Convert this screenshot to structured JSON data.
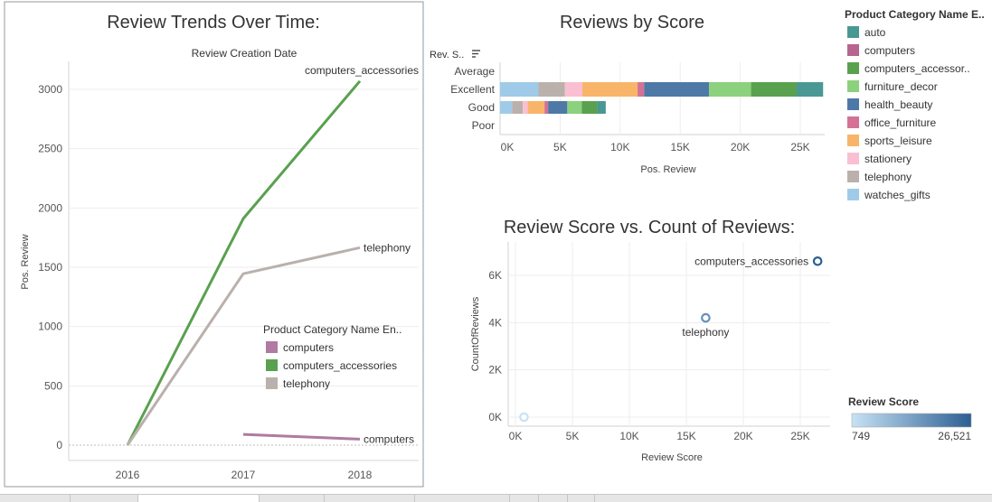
{
  "chart_data": [
    {
      "type": "line",
      "title": "Review Trends Over Time:",
      "column_header": "Review Creation Date",
      "xlabel": "",
      "ylabel": "Pos. Review",
      "categories": [
        "2016",
        "2017",
        "2018"
      ],
      "ylim": [
        0,
        3200
      ],
      "yticks": [
        0,
        500,
        1000,
        1500,
        2000,
        2500,
        3000
      ],
      "grid": true,
      "legend": {
        "title": "Product Category Name En..",
        "position": "bottom-right",
        "items": [
          {
            "label": "computers",
            "color": "#b07aa1"
          },
          {
            "label": "computers_accessories",
            "color": "#59a14f"
          },
          {
            "label": "telephony",
            "color": "#bab0ac"
          }
        ]
      },
      "series": [
        {
          "name": "computers_accessories",
          "color": "#59a14f",
          "values": [
            0,
            1910,
            3070
          ]
        },
        {
          "name": "telephony",
          "color": "#bab0ac",
          "values": [
            0,
            1445,
            1665
          ]
        },
        {
          "name": "computers",
          "color": "#b07aa1",
          "values": [
            null,
            90,
            50
          ]
        }
      ]
    },
    {
      "type": "bar",
      "orientation": "horizontal",
      "stacked": true,
      "title": "Reviews by Score",
      "row_header": "Rev. S..",
      "xlabel": "Pos. Review",
      "categories": [
        "Average",
        "Excellent",
        "Good",
        "Poor"
      ],
      "xlim": [
        0,
        27000
      ],
      "xticks": [
        0,
        5000,
        10000,
        15000,
        20000,
        25000
      ],
      "xtick_labels": [
        "0K",
        "5K",
        "10K",
        "15K",
        "20K",
        "25K"
      ],
      "grid": true,
      "stack_order": [
        "watches_gifts",
        "telephony",
        "stationery",
        "sports_leisure",
        "office_furniture",
        "health_beauty",
        "furniture_decor",
        "computers_accessories",
        "computers",
        "auto"
      ],
      "series": [
        {
          "name": "watches_gifts",
          "values": [
            0,
            3200,
            1000,
            0
          ]
        },
        {
          "name": "telephony",
          "values": [
            0,
            2200,
            900,
            0
          ]
        },
        {
          "name": "stationery",
          "values": [
            0,
            1450,
            400,
            0
          ]
        },
        {
          "name": "sports_leisure",
          "values": [
            0,
            4600,
            1400,
            0
          ]
        },
        {
          "name": "office_furniture",
          "values": [
            0,
            550,
            300,
            0
          ]
        },
        {
          "name": "health_beauty",
          "values": [
            0,
            5400,
            1600,
            0
          ]
        },
        {
          "name": "furniture_decor",
          "values": [
            0,
            3500,
            1200,
            0
          ]
        },
        {
          "name": "computers_accessories",
          "values": [
            0,
            3800,
            1300,
            0
          ]
        },
        {
          "name": "computers",
          "values": [
            0,
            0,
            0,
            0
          ]
        },
        {
          "name": "auto",
          "values": [
            0,
            2200,
            700,
            0
          ]
        }
      ]
    },
    {
      "type": "scatter",
      "title": "Review Score vs. Count of Reviews:",
      "xlabel": "Review Score",
      "ylabel": "CountOfReviews",
      "xlim": [
        -1000,
        27600
      ],
      "ylim": [
        -400,
        7200
      ],
      "xticks": [
        0,
        5000,
        10000,
        15000,
        20000,
        25000
      ],
      "xtick_labels": [
        "0K",
        "5K",
        "10K",
        "15K",
        "20K",
        "25K"
      ],
      "yticks": [
        0,
        2000,
        4000,
        6000
      ],
      "ytick_labels": [
        "0K",
        "2K",
        "4K",
        "6K"
      ],
      "grid": true,
      "points": [
        {
          "label": "computers_accessories",
          "x": 26521,
          "y": 6600,
          "label_side": "left"
        },
        {
          "label": "telephony",
          "x": 16700,
          "y": 4200,
          "label_side": "below"
        },
        {
          "label": "",
          "x": 749,
          "y": 0,
          "label_side": "none"
        }
      ],
      "color_scale": {
        "title": "Review Score",
        "min": 749,
        "max": 26521,
        "min_label": "749",
        "max_label": "26,521",
        "colors": [
          "#c6e2f5",
          "#2d5f93"
        ]
      }
    }
  ],
  "category_legend": {
    "title": "Product Category Name E..",
    "items": [
      {
        "label": "auto",
        "color": "#499894"
      },
      {
        "label": "computers",
        "color": "#b6668f"
      },
      {
        "label": "computers_accessor..",
        "color": "#59a14f"
      },
      {
        "label": "furniture_decor",
        "color": "#8cd17d"
      },
      {
        "label": "health_beauty",
        "color": "#4e79a7"
      },
      {
        "label": "office_furniture",
        "color": "#d37295"
      },
      {
        "label": "sports_leisure",
        "color": "#f8b56a"
      },
      {
        "label": "stationery",
        "color": "#fabfd2"
      },
      {
        "label": "telephony",
        "color": "#bab0ac"
      },
      {
        "label": "watches_gifts",
        "color": "#a0cbe8"
      }
    ]
  },
  "series_colors": {
    "watches_gifts": "#a0cbe8",
    "telephony": "#bab0ac",
    "stationery": "#fabfd2",
    "sports_leisure": "#f8b56a",
    "office_furniture": "#d37295",
    "health_beauty": "#4e79a7",
    "furniture_decor": "#8cd17d",
    "computers_accessories": "#59a14f",
    "computers": "#b6668f",
    "auto": "#499894"
  },
  "icons": {
    "sort": "sort-descending-icon"
  }
}
